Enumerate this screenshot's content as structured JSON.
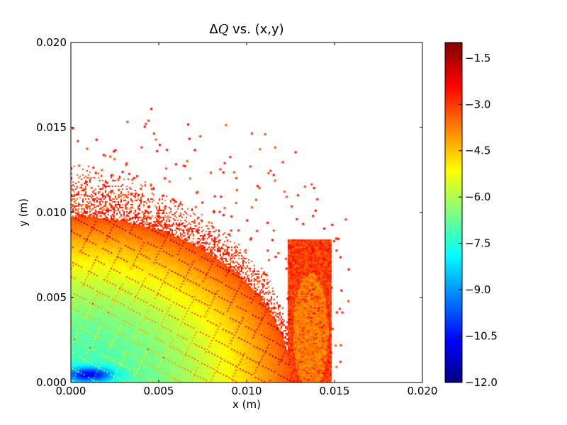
{
  "chart_data": {
    "type": "heatmap",
    "title": "ΔQ vs. (x,y)",
    "title_prefix": "Δ",
    "title_symbol": "Q",
    "title_suffix": " vs. (x,y)",
    "xlabel": "x (m)",
    "ylabel": "y (m)",
    "xlim": [
      0.0,
      0.02
    ],
    "ylim": [
      0.0,
      0.02
    ],
    "xticks": [
      0.0,
      0.005,
      0.01,
      0.015,
      0.02
    ],
    "xtick_labels": [
      "0.000",
      "0.005",
      "0.010",
      "0.015",
      "0.020"
    ],
    "yticks": [
      0.0,
      0.005,
      0.01,
      0.015,
      0.02
    ],
    "ytick_labels": [
      "0.000",
      "0.005",
      "0.010",
      "0.015",
      "0.020"
    ],
    "colormap": "jet",
    "colorbar": {
      "range": [
        -12.0,
        -1.0
      ],
      "ticks": [
        -12.0,
        -10.5,
        -9.0,
        -7.5,
        -6.0,
        -4.5,
        -3.0,
        -1.5
      ],
      "tick_labels": [
        "−12.0",
        "−10.5",
        "−9.0",
        "−7.5",
        "−6.0",
        "−4.5",
        "−3.0",
        "−1.5"
      ]
    },
    "grid": false,
    "region_extent": {
      "stable_core_radius_x": 0.0125,
      "stable_core_radius_y": 0.0098,
      "scatter_max_x": 0.0158,
      "scatter_max_y": 0.0171
    }
  }
}
